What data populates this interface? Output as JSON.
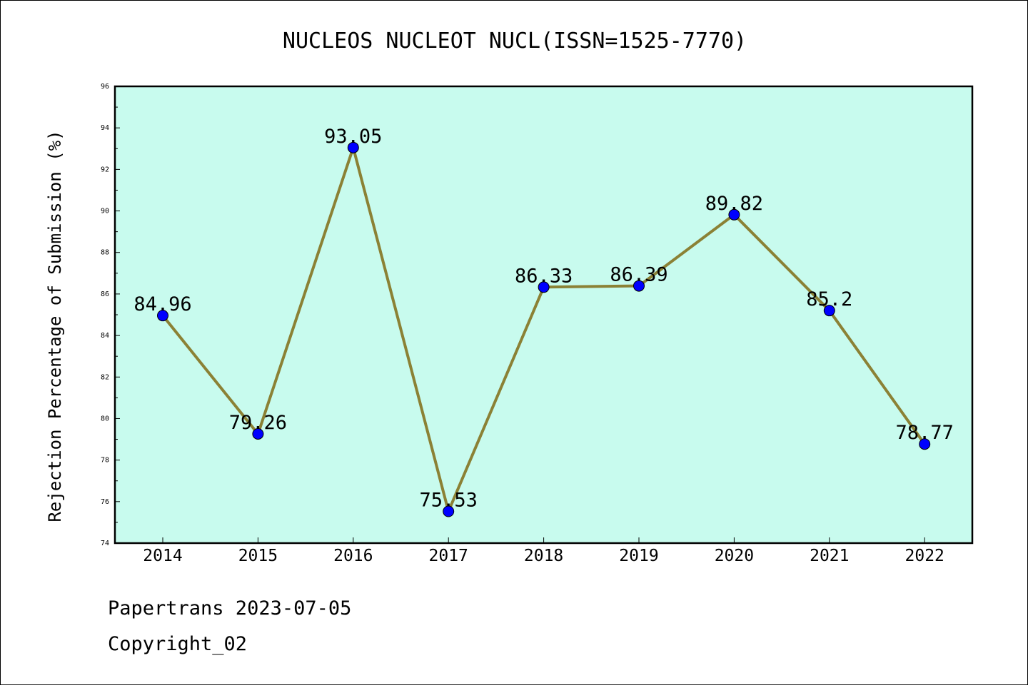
{
  "chart_data": {
    "type": "line",
    "title": "NUCLEOS NUCLEOT NUCL(ISSN=1525-7770)",
    "ylabel": "Rejection Percentage of Submission (%)",
    "xlabel": "",
    "categories": [
      "2014",
      "2015",
      "2016",
      "2017",
      "2018",
      "2019",
      "2020",
      "2021",
      "2022"
    ],
    "values": [
      84.96,
      79.26,
      93.05,
      75.53,
      86.33,
      86.39,
      89.82,
      85.2,
      78.77
    ],
    "data_labels": [
      "84.96",
      "79.26",
      "93.05",
      "75.53",
      "86.33",
      "86.39",
      "89.82",
      "85.2",
      "78.77"
    ],
    "ylim": [
      74,
      96
    ],
    "yticks": [
      74,
      76,
      78,
      80,
      82,
      84,
      86,
      88,
      90,
      92,
      94,
      96
    ],
    "grid": false,
    "colors": {
      "plot_background": "#c8fbee",
      "line": "#8b8135",
      "marker": "#0000ff"
    }
  },
  "footer": {
    "line1": "Papertrans 2023-07-05",
    "line2": "Copyright_02"
  }
}
